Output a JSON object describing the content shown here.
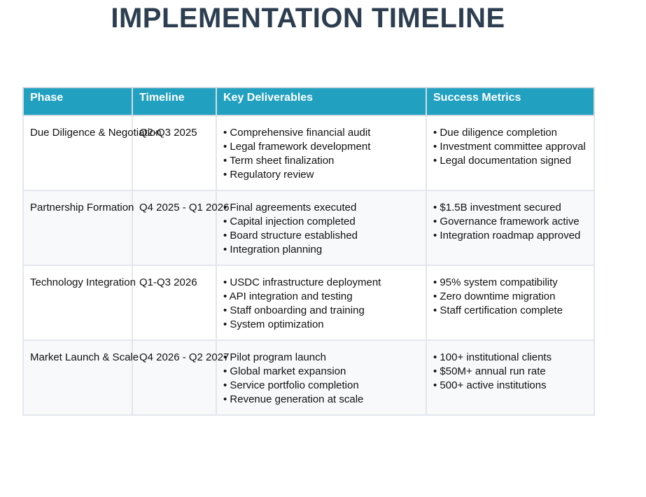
{
  "title": "IMPLEMENTATION TIMELINE",
  "table": {
    "headers": [
      "Phase",
      "Timeline",
      "Key Deliverables",
      "Success Metrics"
    ],
    "rows": [
      {
        "phase": "Due Diligence & Negotiation",
        "timeline": "Q2-Q3 2025",
        "deliverables": [
          "• Comprehensive financial audit",
          "• Legal framework development",
          "• Term sheet finalization",
          "• Regulatory review"
        ],
        "metrics": [
          "• Due diligence completion",
          "• Investment committee approval",
          "• Legal documentation signed"
        ]
      },
      {
        "phase": "Partnership Formation",
        "timeline": "Q4 2025 - Q1 2026",
        "deliverables": [
          "• Final agreements executed",
          "• Capital injection completed",
          "• Board structure established",
          "• Integration planning"
        ],
        "metrics": [
          "• $1.5B investment secured",
          "• Governance framework active",
          "• Integration roadmap approved"
        ]
      },
      {
        "phase": "Technology Integration",
        "timeline": "Q1-Q3 2026",
        "deliverables": [
          "• USDC infrastructure deployment",
          "• API integration and testing",
          "• Staff onboarding and training",
          "• System optimization"
        ],
        "metrics": [
          "• 95% system compatibility",
          "• Zero downtime migration",
          "• Staff certification complete"
        ]
      },
      {
        "phase": "Market Launch & Scale",
        "timeline": "Q4 2026 - Q2 2027",
        "deliverables": [
          "• Pilot program launch",
          "• Global market expansion",
          "• Service portfolio completion",
          "• Revenue generation at scale"
        ],
        "metrics": [
          "• 100+ institutional clients",
          "• $50M+ annual run rate",
          "• 500+ active institutions"
        ]
      }
    ]
  },
  "colors": {
    "title": "#2c3e50",
    "header_bg": "#22a0c0",
    "header_text": "#ffffff",
    "alt_row_bg": "#f7f9fb",
    "border": "#e3e7ec"
  }
}
